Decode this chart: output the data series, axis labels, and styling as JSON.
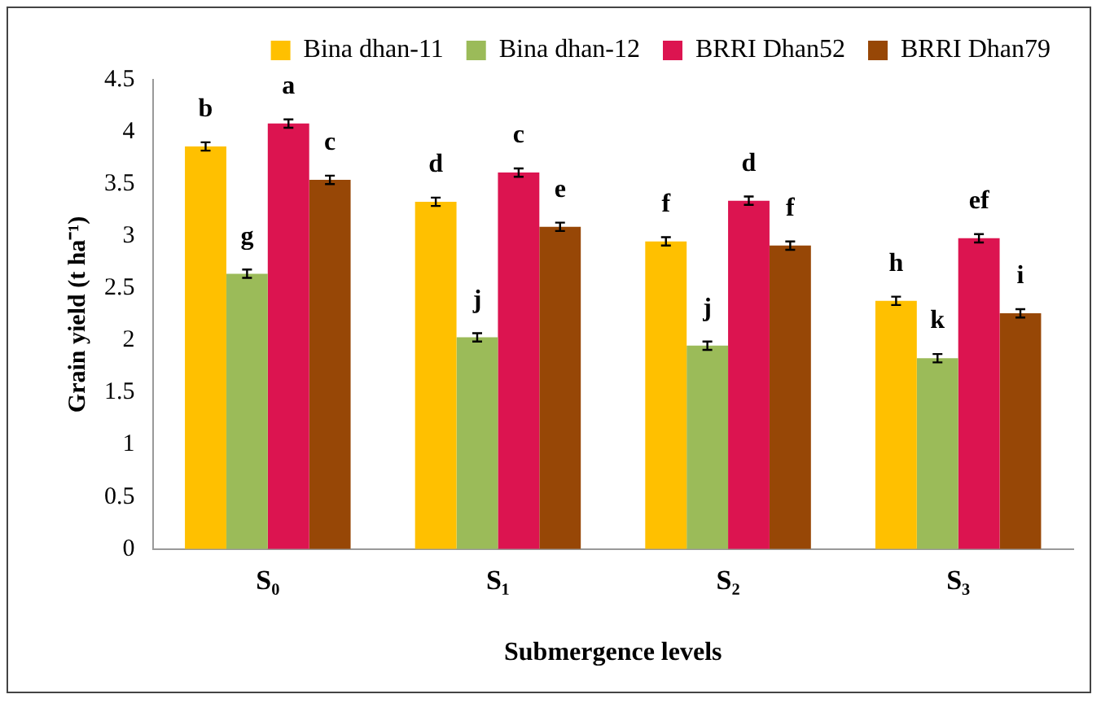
{
  "chart_data": {
    "type": "bar",
    "xlabel": "Submergence levels",
    "ylabel": "Grain yield (t ha⁻¹)",
    "categories": [
      "S₀",
      "S₁",
      "S₂",
      "S₃"
    ],
    "series": [
      {
        "name": "Bina dhan-11",
        "color": "#ffc000",
        "values": [
          3.86,
          3.33,
          2.95,
          2.38
        ],
        "errors": [
          0.04,
          0.04,
          0.04,
          0.04
        ],
        "value_labels": [
          "b",
          "d",
          "f",
          "h"
        ]
      },
      {
        "name": "Bina dhan-12",
        "color": "#9bbb59",
        "values": [
          2.64,
          2.03,
          1.95,
          1.83
        ],
        "errors": [
          0.04,
          0.04,
          0.04,
          0.04
        ],
        "value_labels": [
          "g",
          "j",
          "j",
          "k"
        ]
      },
      {
        "name": "BRRI Dhan52",
        "color": "#dc1450",
        "values": [
          4.08,
          3.61,
          3.34,
          2.98
        ],
        "errors": [
          0.04,
          0.04,
          0.04,
          0.04
        ],
        "value_labels": [
          "a",
          "c",
          "d",
          "ef"
        ]
      },
      {
        "name": "BRRI Dhan79",
        "color": "#974706",
        "values": [
          3.54,
          3.09,
          2.91,
          2.26
        ],
        "errors": [
          0.04,
          0.04,
          0.04,
          0.04
        ],
        "value_labels": [
          "c",
          "e",
          "f",
          "i"
        ]
      }
    ],
    "ylim": [
      0,
      4.5
    ],
    "yticks": [
      0,
      0.5,
      1,
      1.5,
      2,
      2.5,
      3,
      3.5,
      4,
      4.5
    ],
    "grid": false,
    "legend": "top"
  }
}
